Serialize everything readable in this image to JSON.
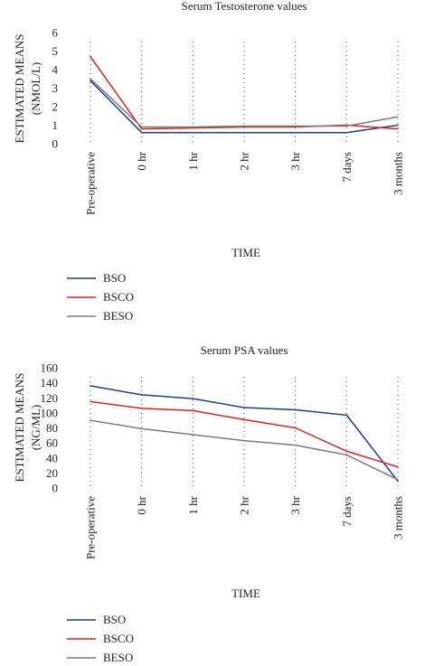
{
  "chart_data": [
    {
      "type": "line",
      "title": "Serum Testosterone values",
      "xlabel": "TIME",
      "ylabel": [
        "ESTIMATED MEANS",
        "(NMOL/L)"
      ],
      "ylim": [
        0,
        6
      ],
      "yticks": [
        "0",
        "1",
        "2",
        "3",
        "4",
        "5",
        "6"
      ],
      "categories": [
        "Pre-operative",
        "0 hr",
        "1 hr",
        "2 hr",
        "3 hr",
        "7 days",
        "3 months"
      ],
      "series": [
        {
          "name": "BSO",
          "color": "#1f3f8f",
          "values": [
            3.4,
            0.6,
            0.6,
            0.6,
            0.6,
            0.6,
            1.0
          ]
        },
        {
          "name": "BSCO",
          "color": "#e0221e",
          "values": [
            4.7,
            0.8,
            0.85,
            0.9,
            0.9,
            1.0,
            0.8
          ]
        },
        {
          "name": "BESO",
          "color": "#7a7a7a",
          "values": [
            3.5,
            0.9,
            0.9,
            0.95,
            0.95,
            0.95,
            1.45
          ]
        }
      ],
      "legend": "bottom-left",
      "grid": "vertical-dotted"
    },
    {
      "type": "line",
      "title": "Serum PSA values",
      "xlabel": "TIME",
      "ylabel": [
        "ESTIMATED MEANS",
        "(NG/ML)"
      ],
      "ylim": [
        0,
        160
      ],
      "yticks": [
        "0",
        "20",
        "40",
        "60",
        "80",
        "100",
        "120",
        "140",
        "160"
      ],
      "categories": [
        "Pre-operative",
        "0 hr",
        "1 hr",
        "2 hr",
        "3 hr",
        "7 days",
        "3 months"
      ],
      "series": [
        {
          "name": "BSO",
          "color": "#1f3f8f",
          "values": [
            136,
            124,
            119,
            107,
            104,
            97,
            9
          ]
        },
        {
          "name": "BSCO",
          "color": "#e0221e",
          "values": [
            115,
            106,
            103,
            91,
            80,
            49,
            28
          ]
        },
        {
          "name": "BESO",
          "color": "#7a7a7a",
          "values": [
            90,
            79,
            71,
            63,
            57,
            44,
            11
          ]
        }
      ],
      "legend": "bottom-left",
      "grid": "vertical-dotted"
    }
  ]
}
